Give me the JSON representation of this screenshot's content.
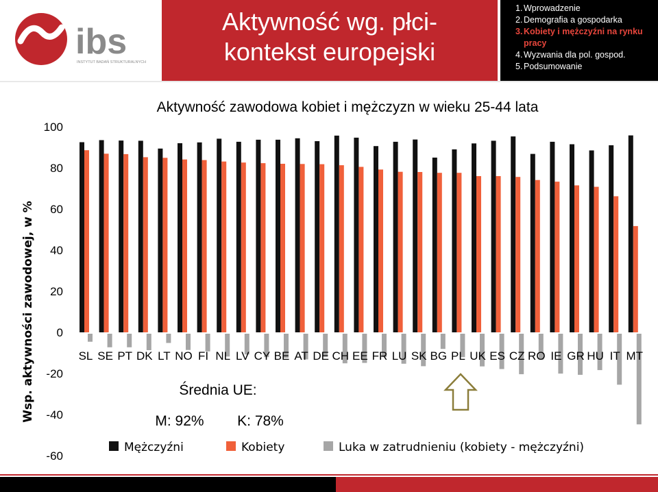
{
  "header": {
    "logo_text": "ibs",
    "logo_subtitle": "INSTYTUT BADAŃ STRUKTURALNYCH",
    "title_line1": "Aktywność wg. płci-",
    "title_line2": "kontekst europejski",
    "agenda": [
      {
        "num": "1.",
        "label": "Wprowadzenie",
        "active": false
      },
      {
        "num": "2.",
        "label": "Demografia a gospodarka",
        "active": false
      },
      {
        "num": "3.",
        "label": "Kobiety i mężczyźni na rynku",
        "label2": "pracy",
        "active": true
      },
      {
        "num": "4.",
        "label": "Wyzwania dla pol. gospod.",
        "active": false
      },
      {
        "num": "5.",
        "label": "Podsumowanie",
        "active": false
      }
    ]
  },
  "colors": {
    "men": "#111111",
    "women": "#f0603a",
    "gap": "#a6a6a6",
    "accent": "#c0272d",
    "arrow": "#8b7d3a"
  },
  "annotations": {
    "avg_title": "Średnia UE:",
    "avg_men": "M: 92%",
    "avg_women": "K: 78%"
  },
  "chart_data": {
    "type": "bar",
    "title": "Aktywność zawodowa kobiet i mężczyzn w wieku 25-44 lata",
    "ylabel": "Wsp. aktywności zawodowej, w %",
    "ylim": [
      -60,
      100
    ],
    "yticks": [
      100,
      80,
      60,
      40,
      20,
      0,
      -20,
      -40,
      -60
    ],
    "categories": [
      "SL",
      "SE",
      "PT",
      "DK",
      "LT",
      "NO",
      "FI",
      "NL",
      "LV",
      "CY",
      "BE",
      "AT",
      "DE",
      "CH",
      "EE",
      "FR",
      "LU",
      "SK",
      "BG",
      "PL",
      "UK",
      "ES",
      "CZ",
      "RO",
      "IE",
      "GR",
      "HU",
      "IT",
      "MT"
    ],
    "series": [
      {
        "name": "Mężczyźni",
        "values": [
          92.5,
          93.5,
          93.3,
          93.2,
          89.4,
          92.0,
          92.4,
          94.2,
          92.7,
          93.7,
          93.7,
          94.4,
          93.0,
          95.7,
          94.7,
          90.6,
          92.7,
          93.8,
          85.0,
          89.0,
          91.9,
          93.2,
          95.3,
          86.8,
          92.7,
          91.5,
          88.5,
          91.0,
          95.8
        ]
      },
      {
        "name": "Kobiety",
        "values": [
          88.6,
          86.9,
          86.7,
          85.2,
          84.9,
          84.1,
          83.8,
          83.1,
          82.6,
          82.3,
          82.0,
          81.9,
          81.8,
          81.3,
          80.5,
          79.2,
          78.1,
          78.0,
          77.6,
          77.6,
          76.0,
          76.0,
          75.6,
          74.1,
          73.3,
          71.5,
          70.8,
          66.2,
          51.7
        ]
      },
      {
        "name": "Luka w zatrudnieniu (kobiety - mężczyźni)",
        "values": [
          -3.9,
          -6.6,
          -6.6,
          -8.0,
          -4.5,
          -7.9,
          -8.6,
          -11.1,
          -10.1,
          -11.4,
          -11.7,
          -12.5,
          -11.2,
          -14.4,
          -14.2,
          -11.4,
          -14.6,
          -15.8,
          -7.4,
          -11.4,
          -15.9,
          -17.2,
          -19.7,
          -12.7,
          -19.4,
          -20.0,
          -17.7,
          -24.8,
          -44.1
        ]
      }
    ],
    "legend_position": "bottom",
    "grid": false
  }
}
